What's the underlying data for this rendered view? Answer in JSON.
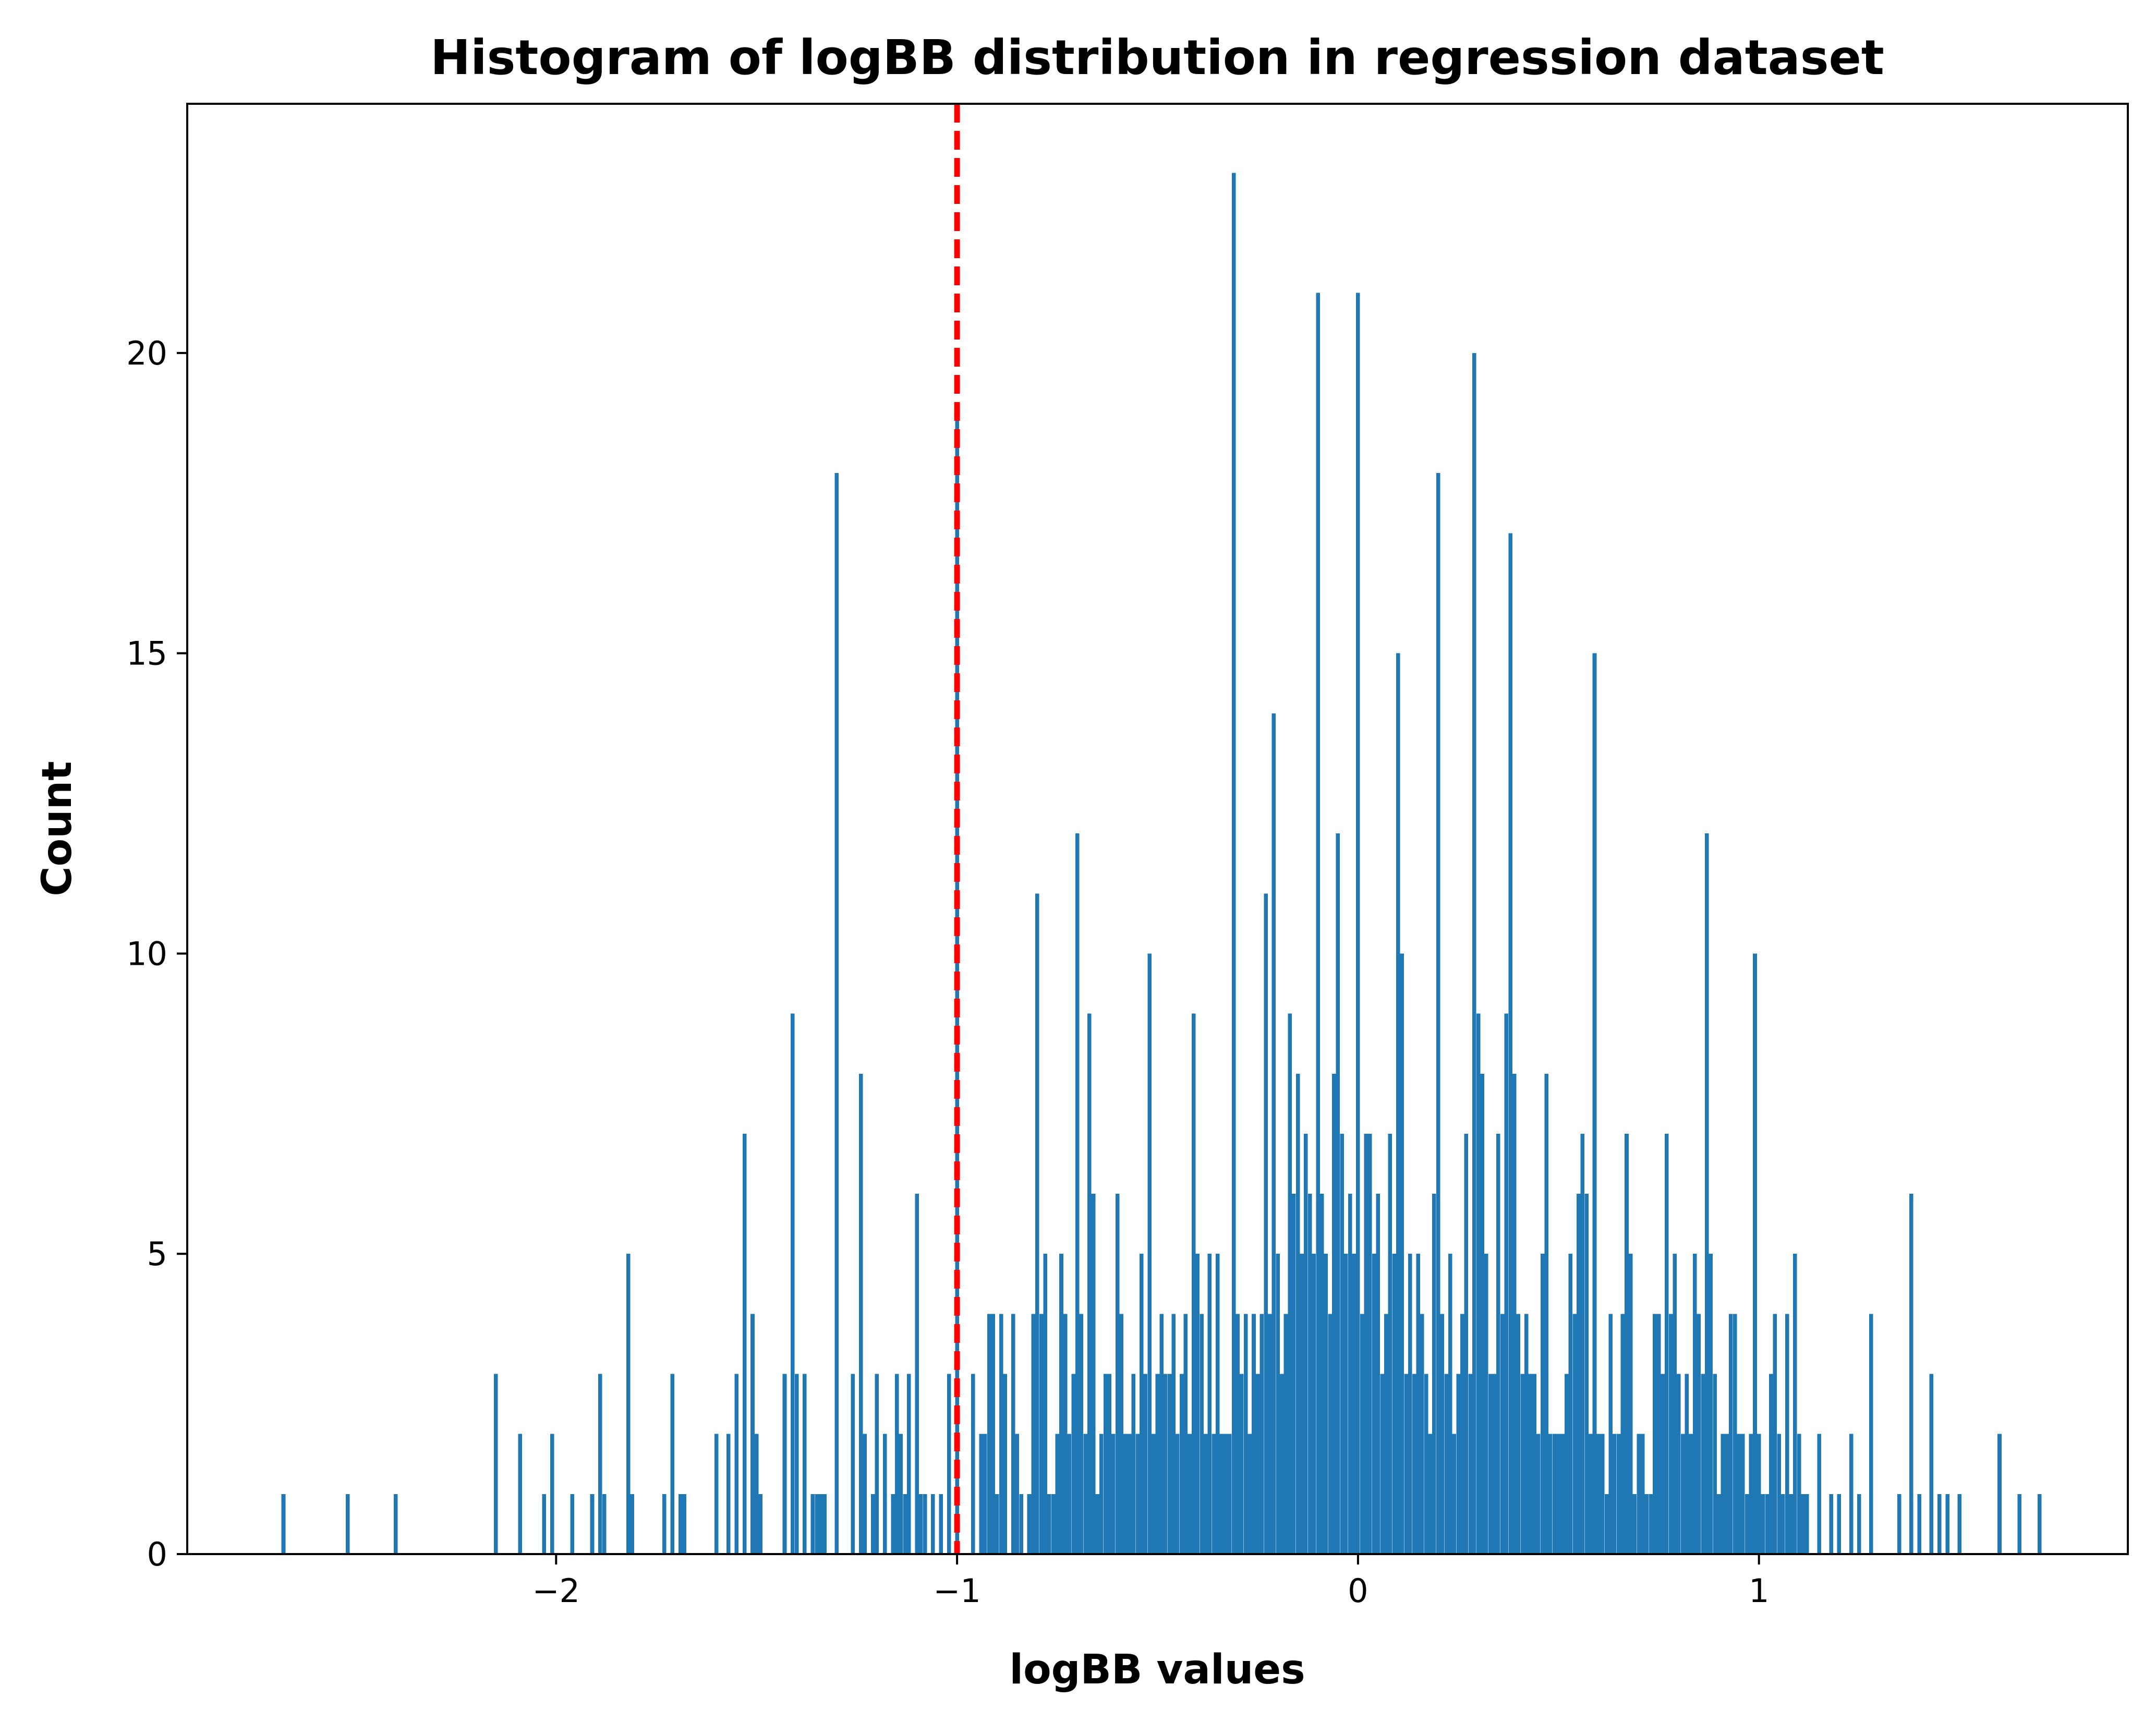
{
  "chart_data": {
    "type": "bar",
    "title": "Histogram of logBB distribution in regression dataset",
    "xlabel": "logBB values",
    "ylabel": "Count",
    "xlim": [
      -2.92,
      1.92
    ],
    "ylim": [
      0,
      24.15
    ],
    "xticks": [
      {
        "value": -2,
        "label": "−2"
      },
      {
        "value": -1,
        "label": "−1"
      },
      {
        "value": 0,
        "label": "0"
      },
      {
        "value": 1,
        "label": "1"
      }
    ],
    "yticks": [
      {
        "value": 0,
        "label": "0"
      },
      {
        "value": 5,
        "label": "5"
      },
      {
        "value": 10,
        "label": "10"
      },
      {
        "value": 15,
        "label": "15"
      },
      {
        "value": 20,
        "label": "20"
      }
    ],
    "grid": false,
    "bar_color": "#1f77b4",
    "threshold_line": {
      "x": -1,
      "color": "#ff0000",
      "style": "dashed"
    },
    "series": [
      {
        "bin_width": 0.0098,
        "points": [
          [
            -2.68,
            1
          ],
          [
            -2.52,
            1
          ],
          [
            -2.4,
            1
          ],
          [
            -2.15,
            3
          ],
          [
            -2.09,
            2
          ],
          [
            -2.03,
            1
          ],
          [
            -2.01,
            2
          ],
          [
            -1.96,
            1
          ],
          [
            -1.91,
            1
          ],
          [
            -1.89,
            3
          ],
          [
            -1.88,
            1
          ],
          [
            -1.82,
            5
          ],
          [
            -1.81,
            1
          ],
          [
            -1.73,
            1
          ],
          [
            -1.71,
            3
          ],
          [
            -1.69,
            1
          ],
          [
            -1.68,
            1
          ],
          [
            -1.6,
            2
          ],
          [
            -1.57,
            2
          ],
          [
            -1.55,
            3
          ],
          [
            -1.53,
            7
          ],
          [
            -1.51,
            4
          ],
          [
            -1.5,
            2
          ],
          [
            -1.49,
            1
          ],
          [
            -1.43,
            3
          ],
          [
            -1.41,
            9
          ],
          [
            -1.4,
            3
          ],
          [
            -1.38,
            3
          ],
          [
            -1.36,
            1
          ],
          [
            -1.35,
            1
          ],
          [
            -1.34,
            1
          ],
          [
            -1.33,
            1
          ],
          [
            -1.3,
            18
          ],
          [
            -1.26,
            3
          ],
          [
            -1.24,
            8
          ],
          [
            -1.23,
            2
          ],
          [
            -1.21,
            1
          ],
          [
            -1.2,
            3
          ],
          [
            -1.18,
            2
          ],
          [
            -1.16,
            1
          ],
          [
            -1.15,
            3
          ],
          [
            -1.14,
            2
          ],
          [
            -1.13,
            1
          ],
          [
            -1.12,
            3
          ],
          [
            -1.1,
            6
          ],
          [
            -1.09,
            1
          ],
          [
            -1.08,
            1
          ],
          [
            -1.06,
            1
          ],
          [
            -1.04,
            1
          ],
          [
            -1.02,
            3
          ],
          [
            -1.0,
            19
          ],
          [
            -0.96,
            3
          ],
          [
            -0.94,
            2
          ],
          [
            -0.93,
            2
          ],
          [
            -0.92,
            4
          ],
          [
            -0.91,
            4
          ],
          [
            -0.9,
            1
          ],
          [
            -0.89,
            4
          ],
          [
            -0.88,
            3
          ],
          [
            -0.86,
            4
          ],
          [
            -0.85,
            2
          ],
          [
            -0.84,
            1
          ],
          [
            -0.82,
            1
          ],
          [
            -0.81,
            4
          ],
          [
            -0.8,
            11
          ],
          [
            -0.79,
            4
          ],
          [
            -0.78,
            5
          ],
          [
            -0.77,
            1
          ],
          [
            -0.76,
            1
          ],
          [
            -0.75,
            2
          ],
          [
            -0.74,
            5
          ],
          [
            -0.73,
            4
          ],
          [
            -0.72,
            2
          ],
          [
            -0.71,
            3
          ],
          [
            -0.7,
            12
          ],
          [
            -0.69,
            4
          ],
          [
            -0.68,
            2
          ],
          [
            -0.67,
            9
          ],
          [
            -0.66,
            6
          ],
          [
            -0.65,
            1
          ],
          [
            -0.64,
            2
          ],
          [
            -0.63,
            3
          ],
          [
            -0.62,
            3
          ],
          [
            -0.61,
            2
          ],
          [
            -0.6,
            6
          ],
          [
            -0.59,
            4
          ],
          [
            -0.58,
            2
          ],
          [
            -0.57,
            2
          ],
          [
            -0.56,
            3
          ],
          [
            -0.55,
            2
          ],
          [
            -0.54,
            5
          ],
          [
            -0.53,
            3
          ],
          [
            -0.52,
            10
          ],
          [
            -0.51,
            2
          ],
          [
            -0.5,
            3
          ],
          [
            -0.49,
            4
          ],
          [
            -0.48,
            3
          ],
          [
            -0.47,
            3
          ],
          [
            -0.46,
            4
          ],
          [
            -0.45,
            2
          ],
          [
            -0.44,
            3
          ],
          [
            -0.43,
            4
          ],
          [
            -0.42,
            2
          ],
          [
            -0.41,
            9
          ],
          [
            -0.4,
            5
          ],
          [
            -0.39,
            4
          ],
          [
            -0.38,
            2
          ],
          [
            -0.37,
            5
          ],
          [
            -0.36,
            2
          ],
          [
            -0.35,
            5
          ],
          [
            -0.34,
            2
          ],
          [
            -0.33,
            2
          ],
          [
            -0.32,
            2
          ],
          [
            -0.31,
            23
          ],
          [
            -0.3,
            4
          ],
          [
            -0.29,
            3
          ],
          [
            -0.28,
            4
          ],
          [
            -0.27,
            2
          ],
          [
            -0.26,
            4
          ],
          [
            -0.25,
            3
          ],
          [
            -0.24,
            4
          ],
          [
            -0.23,
            11
          ],
          [
            -0.22,
            4
          ],
          [
            -0.21,
            14
          ],
          [
            -0.2,
            5
          ],
          [
            -0.19,
            3
          ],
          [
            -0.18,
            4
          ],
          [
            -0.17,
            9
          ],
          [
            -0.16,
            6
          ],
          [
            -0.15,
            8
          ],
          [
            -0.14,
            5
          ],
          [
            -0.13,
            7
          ],
          [
            -0.12,
            6
          ],
          [
            -0.11,
            5
          ],
          [
            -0.1,
            21
          ],
          [
            -0.09,
            6
          ],
          [
            -0.08,
            5
          ],
          [
            -0.07,
            4
          ],
          [
            -0.06,
            8
          ],
          [
            -0.05,
            12
          ],
          [
            -0.04,
            7
          ],
          [
            -0.03,
            5
          ],
          [
            -0.02,
            6
          ],
          [
            -0.01,
            5
          ],
          [
            0.0,
            21
          ],
          [
            0.01,
            4
          ],
          [
            0.02,
            7
          ],
          [
            0.03,
            7
          ],
          [
            0.04,
            5
          ],
          [
            0.05,
            6
          ],
          [
            0.06,
            3
          ],
          [
            0.07,
            4
          ],
          [
            0.08,
            7
          ],
          [
            0.09,
            5
          ],
          [
            0.1,
            15
          ],
          [
            0.11,
            10
          ],
          [
            0.12,
            3
          ],
          [
            0.13,
            5
          ],
          [
            0.14,
            3
          ],
          [
            0.15,
            5
          ],
          [
            0.16,
            4
          ],
          [
            0.17,
            3
          ],
          [
            0.18,
            2
          ],
          [
            0.19,
            6
          ],
          [
            0.2,
            18
          ],
          [
            0.21,
            4
          ],
          [
            0.22,
            3
          ],
          [
            0.23,
            5
          ],
          [
            0.24,
            2
          ],
          [
            0.25,
            3
          ],
          [
            0.26,
            4
          ],
          [
            0.27,
            7
          ],
          [
            0.28,
            3
          ],
          [
            0.29,
            20
          ],
          [
            0.3,
            9
          ],
          [
            0.31,
            8
          ],
          [
            0.32,
            5
          ],
          [
            0.33,
            3
          ],
          [
            0.34,
            3
          ],
          [
            0.35,
            7
          ],
          [
            0.36,
            4
          ],
          [
            0.37,
            9
          ],
          [
            0.38,
            17
          ],
          [
            0.39,
            8
          ],
          [
            0.4,
            4
          ],
          [
            0.41,
            3
          ],
          [
            0.42,
            4
          ],
          [
            0.43,
            3
          ],
          [
            0.44,
            3
          ],
          [
            0.45,
            2
          ],
          [
            0.46,
            5
          ],
          [
            0.47,
            8
          ],
          [
            0.48,
            2
          ],
          [
            0.49,
            2
          ],
          [
            0.5,
            2
          ],
          [
            0.51,
            2
          ],
          [
            0.52,
            3
          ],
          [
            0.53,
            5
          ],
          [
            0.54,
            4
          ],
          [
            0.55,
            6
          ],
          [
            0.56,
            7
          ],
          [
            0.57,
            6
          ],
          [
            0.58,
            2
          ],
          [
            0.59,
            15
          ],
          [
            0.6,
            2
          ],
          [
            0.61,
            2
          ],
          [
            0.62,
            1
          ],
          [
            0.63,
            4
          ],
          [
            0.64,
            2
          ],
          [
            0.65,
            2
          ],
          [
            0.66,
            4
          ],
          [
            0.67,
            7
          ],
          [
            0.68,
            5
          ],
          [
            0.69,
            1
          ],
          [
            0.7,
            2
          ],
          [
            0.71,
            2
          ],
          [
            0.72,
            1
          ],
          [
            0.73,
            1
          ],
          [
            0.74,
            4
          ],
          [
            0.75,
            4
          ],
          [
            0.76,
            3
          ],
          [
            0.77,
            7
          ],
          [
            0.78,
            4
          ],
          [
            0.79,
            5
          ],
          [
            0.8,
            3
          ],
          [
            0.81,
            2
          ],
          [
            0.82,
            3
          ],
          [
            0.83,
            2
          ],
          [
            0.84,
            5
          ],
          [
            0.85,
            4
          ],
          [
            0.86,
            3
          ],
          [
            0.87,
            12
          ],
          [
            0.88,
            5
          ],
          [
            0.89,
            3
          ],
          [
            0.9,
            1
          ],
          [
            0.91,
            2
          ],
          [
            0.92,
            2
          ],
          [
            0.93,
            4
          ],
          [
            0.94,
            4
          ],
          [
            0.95,
            2
          ],
          [
            0.96,
            2
          ],
          [
            0.97,
            1
          ],
          [
            0.98,
            2
          ],
          [
            0.99,
            10
          ],
          [
            1.0,
            2
          ],
          [
            1.01,
            1
          ],
          [
            1.02,
            1
          ],
          [
            1.03,
            3
          ],
          [
            1.04,
            4
          ],
          [
            1.05,
            2
          ],
          [
            1.06,
            1
          ],
          [
            1.07,
            4
          ],
          [
            1.08,
            1
          ],
          [
            1.09,
            5
          ],
          [
            1.1,
            2
          ],
          [
            1.11,
            1
          ],
          [
            1.12,
            1
          ],
          [
            1.15,
            2
          ],
          [
            1.18,
            1
          ],
          [
            1.2,
            1
          ],
          [
            1.23,
            2
          ],
          [
            1.25,
            1
          ],
          [
            1.28,
            4
          ],
          [
            1.35,
            1
          ],
          [
            1.38,
            6
          ],
          [
            1.4,
            1
          ],
          [
            1.43,
            3
          ],
          [
            1.45,
            1
          ],
          [
            1.47,
            1
          ],
          [
            1.5,
            1
          ],
          [
            1.6,
            2
          ],
          [
            1.65,
            1
          ],
          [
            1.7,
            1
          ]
        ]
      }
    ]
  }
}
